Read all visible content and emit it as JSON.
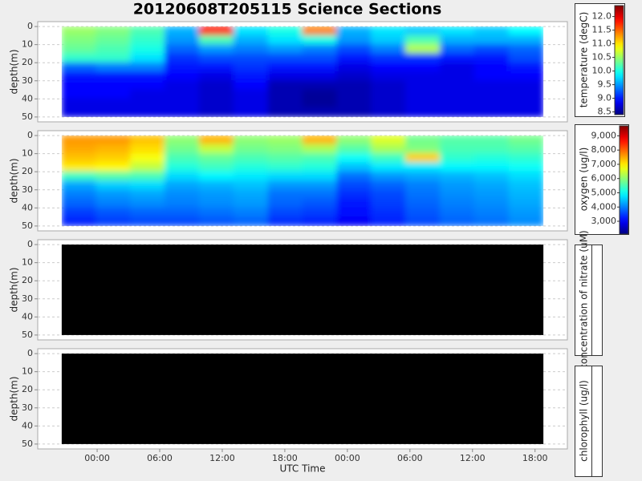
{
  "title": "20120608T205115 Science Sections",
  "chart_data": [
    {
      "type": "heatmap",
      "ylabel": "depth(m)",
      "ylim": [
        52.7,
        -2.7
      ],
      "yticks": [
        0,
        10,
        20,
        30,
        40,
        50
      ],
      "xlim": [
        -5.7,
        45.1
      ],
      "x": [
        -1.75,
        1.55,
        4.85,
        8.15,
        11.45,
        14.75,
        18.05,
        21.35,
        24.65,
        27.95,
        31.25,
        34.55,
        37.85,
        41.15
      ],
      "y": [
        2.5,
        7.5,
        12.5,
        17.5,
        22.5,
        27.5,
        32.5,
        37.5,
        42.5,
        47.5
      ],
      "z": [
        [
          10.5,
          10.4,
          10.2,
          9.6,
          11.8,
          9.8,
          10.0,
          11.4,
          9.6,
          9.8,
          9.7,
          9.8,
          9.7,
          9.9
        ],
        [
          10.4,
          10.3,
          10.1,
          9.5,
          10.2,
          9.6,
          9.8,
          10.0,
          9.5,
          9.7,
          10.2,
          9.6,
          9.6,
          9.6
        ],
        [
          10.3,
          10.2,
          10.0,
          9.3,
          9.5,
          9.4,
          9.5,
          9.4,
          9.2,
          9.4,
          10.6,
          9.3,
          9.2,
          9.3
        ],
        [
          10.1,
          10.1,
          9.8,
          9.1,
          9.2,
          9.2,
          9.2,
          9.2,
          9.0,
          9.1,
          9.1,
          9.0,
          9.0,
          9.2
        ],
        [
          9.3,
          9.4,
          9.4,
          9.0,
          9.0,
          9.1,
          9.0,
          9.0,
          8.8,
          8.9,
          8.9,
          8.8,
          8.9,
          9.0
        ],
        [
          9.0,
          9.0,
          9.0,
          8.9,
          8.8,
          9.0,
          8.8,
          8.8,
          8.7,
          8.8,
          8.8,
          8.8,
          8.9,
          8.9
        ],
        [
          8.9,
          8.9,
          8.9,
          8.8,
          8.7,
          8.9,
          8.6,
          8.6,
          8.6,
          8.7,
          8.8,
          8.8,
          8.8,
          8.8
        ],
        [
          8.9,
          8.9,
          8.8,
          8.8,
          8.7,
          8.8,
          8.6,
          8.5,
          8.6,
          8.7,
          8.8,
          8.8,
          8.8,
          8.8
        ],
        [
          8.8,
          8.8,
          8.8,
          8.8,
          8.7,
          8.8,
          8.6,
          8.5,
          8.6,
          8.7,
          8.8,
          8.8,
          8.8,
          8.8
        ],
        [
          8.8,
          8.8,
          8.8,
          8.8,
          8.7,
          8.8,
          8.6,
          8.6,
          8.6,
          8.7,
          8.8,
          8.8,
          8.8,
          8.8
        ]
      ],
      "colorbar": {
        "label": "temperature (degC)",
        "colormap": "jet",
        "clim": [
          8.4,
          12.4
        ],
        "ticks": [
          8.5,
          {
            "value": 9,
            "label": "9.0"
          },
          9.5,
          {
            "value": 10,
            "label": "10.0"
          },
          10.5,
          {
            "value": 11,
            "label": "11.0"
          },
          11.5,
          {
            "value": 12,
            "label": "12.0"
          }
        ]
      }
    },
    {
      "type": "heatmap",
      "ylabel": "depth(m)",
      "ylim": [
        52.7,
        -2.7
      ],
      "yticks": [
        0,
        10,
        20,
        30,
        40,
        50
      ],
      "xlim": [
        -5.7,
        45.1
      ],
      "x": [
        -1.75,
        1.55,
        4.85,
        8.15,
        11.45,
        14.75,
        18.05,
        21.35,
        24.65,
        27.95,
        31.25,
        34.55,
        37.85,
        41.15
      ],
      "y": [
        2.5,
        7.5,
        12.5,
        17.5,
        22.5,
        27.5,
        32.5,
        37.5,
        42.5,
        47.5
      ],
      "z": [
        [
          7600,
          7600,
          7300,
          6000,
          7400,
          6000,
          6100,
          7400,
          6000,
          6600,
          5800,
          5600,
          5600,
          5800
        ],
        [
          7500,
          7400,
          7100,
          5800,
          6400,
          5800,
          5900,
          6200,
          5600,
          6200,
          5900,
          5500,
          5500,
          5600
        ],
        [
          7300,
          7200,
          6800,
          5500,
          5700,
          5500,
          5600,
          5500,
          5000,
          5400,
          7200,
          5300,
          5200,
          5300
        ],
        [
          7000,
          6900,
          6400,
          5200,
          5400,
          5200,
          5300,
          5200,
          4500,
          4800,
          4800,
          4900,
          4900,
          5000
        ],
        [
          5400,
          5600,
          5500,
          4700,
          4900,
          4800,
          4700,
          4700,
          3900,
          4200,
          4300,
          4400,
          4500,
          4700
        ],
        [
          4300,
          4600,
          4700,
          4300,
          4400,
          4500,
          4200,
          4200,
          3600,
          3800,
          4000,
          4200,
          4300,
          4500
        ],
        [
          4000,
          4200,
          4300,
          4100,
          4200,
          4300,
          3900,
          3900,
          3400,
          3600,
          3900,
          4100,
          4200,
          4400
        ],
        [
          3800,
          4000,
          4100,
          4000,
          4100,
          4200,
          3800,
          3700,
          3200,
          3500,
          3800,
          4000,
          4100,
          4300
        ],
        [
          3500,
          3700,
          3800,
          3800,
          3900,
          4000,
          3600,
          3500,
          3100,
          3400,
          3700,
          3900,
          4000,
          4200
        ],
        [
          3300,
          3500,
          3600,
          3600,
          3700,
          3800,
          3400,
          3300,
          3000,
          3300,
          3600,
          3800,
          3900,
          4100
        ]
      ],
      "colorbar": {
        "label": "oxygen (ug/l)",
        "colormap": "jet",
        "clim": [
          2100,
          9700
        ],
        "ticks": [
          {
            "value": 3000,
            "label": "3,000"
          },
          {
            "value": 4000,
            "label": "4,000"
          },
          {
            "value": 5000,
            "label": "5,000"
          },
          {
            "value": 6000,
            "label": "6,000"
          },
          {
            "value": 7000,
            "label": "7,000"
          },
          {
            "value": 8000,
            "label": "8,000"
          },
          {
            "value": 9000,
            "label": "9,000"
          }
        ]
      }
    },
    {
      "type": "heatmap",
      "ylabel": "depth(m)",
      "ylim": [
        52.7,
        -2.7
      ],
      "yticks": [
        0,
        10,
        20,
        30,
        40,
        50
      ],
      "xlim": [
        -5.7,
        45.1
      ],
      "fill": "#000000",
      "colorbar": {
        "label": "concentration of nitrate (uM)"
      }
    },
    {
      "type": "heatmap",
      "ylabel": "depth(m)",
      "ylim": [
        52.7,
        -2.7
      ],
      "yticks": [
        0,
        10,
        20,
        30,
        40,
        50
      ],
      "xlim": [
        -5.7,
        45.1
      ],
      "fill": "#000000",
      "colorbar": {
        "label": "chlorophyll (ug/l)"
      },
      "xlabel": "UTC Time",
      "xticks": [
        {
          "value": 0,
          "label": "00:00"
        },
        {
          "value": 6,
          "label": "06:00"
        },
        {
          "value": 12,
          "label": "12:00"
        },
        {
          "value": 18,
          "label": "18:00"
        },
        {
          "value": 24,
          "label": "00:00"
        },
        {
          "value": 30,
          "label": "06:00"
        },
        {
          "value": 36,
          "label": "12:00"
        },
        {
          "value": 42,
          "label": "18:00"
        }
      ]
    }
  ]
}
